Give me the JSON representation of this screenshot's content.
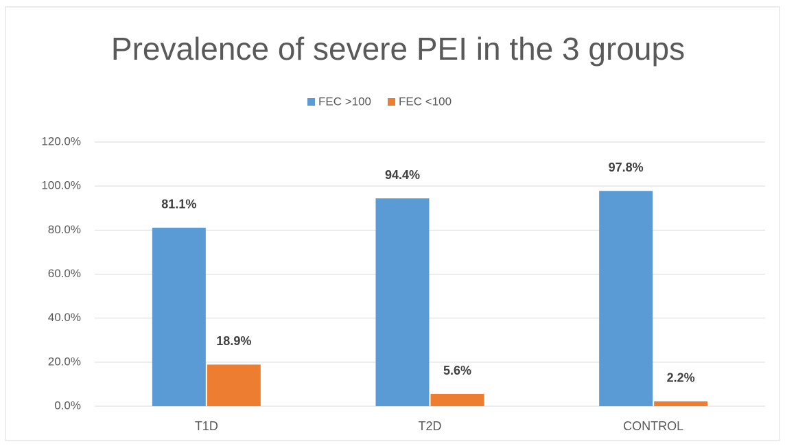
{
  "chart_data": {
    "type": "bar",
    "title": "Prevalence of severe PEI in the 3 groups",
    "categories": [
      "T1D",
      "T2D",
      "CONTROL"
    ],
    "series": [
      {
        "name": "FEC >100",
        "color": "#5b9bd5",
        "values": [
          81.1,
          94.4,
          97.8
        ],
        "value_labels": [
          "81.1%",
          "94.4%",
          "97.8%"
        ]
      },
      {
        "name": "FEC <100",
        "color": "#ed7d31",
        "values": [
          18.9,
          5.6,
          2.2
        ],
        "value_labels": [
          "18.9%",
          "5.6%",
          "2.2%"
        ]
      }
    ],
    "ylim": [
      0,
      120
    ],
    "yticks": [
      {
        "value": 0,
        "label": "0.0%"
      },
      {
        "value": 20,
        "label": "20.0%"
      },
      {
        "value": 40,
        "label": "40.0%"
      },
      {
        "value": 60,
        "label": "60.0%"
      },
      {
        "value": 80,
        "label": "80.0%"
      },
      {
        "value": 100,
        "label": "100.0%"
      },
      {
        "value": 120,
        "label": "120.0%"
      }
    ],
    "grid": true,
    "legend": "top"
  }
}
